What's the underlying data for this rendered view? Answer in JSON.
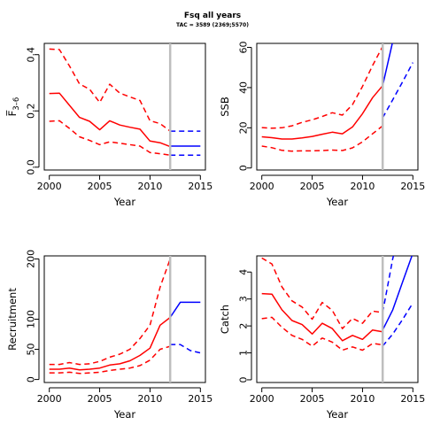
{
  "figure": {
    "title": "Fsq all years",
    "subtitle": "TAC = 3589 (2369;5570)"
  },
  "colors": {
    "historic": "#ff0000",
    "projection": "#0000ff",
    "divider": "#bebebe"
  },
  "chart_data": [
    {
      "type": "line",
      "id": "fbar",
      "ylabel": "F̅",
      "ylabel_subscript": "3–6",
      "xlabel": "Year",
      "xlim": [
        1999.5,
        2015.5
      ],
      "ylim": [
        -0.01,
        0.44
      ],
      "xticks": [
        2000,
        2005,
        2010,
        2015
      ],
      "yticks": [
        0.0,
        0.2,
        0.4
      ],
      "ytick_labels": [
        "0.0",
        "0.2",
        "0.4"
      ],
      "divider_x": 2012,
      "series": [
        {
          "role": "historic-median",
          "style": "solid",
          "x": [
            2000,
            2001,
            2002,
            2003,
            2004,
            2005,
            2006,
            2007,
            2008,
            2009,
            2010,
            2011,
            2012
          ],
          "y": [
            0.262,
            0.263,
            0.22,
            0.177,
            0.163,
            0.133,
            0.165,
            0.15,
            0.142,
            0.135,
            0.093,
            0.087,
            0.073
          ]
        },
        {
          "role": "historic-upper",
          "style": "dashed",
          "x": [
            2000,
            2001,
            2002,
            2003,
            2004,
            2005,
            2006,
            2007,
            2008,
            2009,
            2010,
            2011,
            2012
          ],
          "y": [
            0.42,
            0.418,
            0.36,
            0.296,
            0.277,
            0.23,
            0.295,
            0.263,
            0.25,
            0.237,
            0.165,
            0.155,
            0.128
          ]
        },
        {
          "role": "historic-lower",
          "style": "dashed",
          "x": [
            2000,
            2001,
            2002,
            2003,
            2004,
            2005,
            2006,
            2007,
            2008,
            2009,
            2010,
            2011,
            2012
          ],
          "y": [
            0.163,
            0.165,
            0.138,
            0.108,
            0.095,
            0.08,
            0.09,
            0.085,
            0.08,
            0.075,
            0.052,
            0.048,
            0.043
          ]
        },
        {
          "role": "projection-median",
          "style": "solid",
          "x": [
            2012,
            2013,
            2014,
            2015
          ],
          "y": [
            0.075,
            0.075,
            0.075,
            0.075
          ]
        },
        {
          "role": "projection-upper",
          "style": "dashed",
          "x": [
            2012,
            2013,
            2014,
            2015
          ],
          "y": [
            0.128,
            0.128,
            0.128,
            0.128
          ]
        },
        {
          "role": "projection-lower",
          "style": "dashed",
          "x": [
            2012,
            2013,
            2014,
            2015
          ],
          "y": [
            0.043,
            0.043,
            0.043,
            0.043
          ]
        }
      ]
    },
    {
      "type": "line",
      "id": "ssb",
      "ylabel": "SSB",
      "xlabel": "Year",
      "xlim": [
        1999.5,
        2015.5
      ],
      "ylim": [
        -1,
        62
      ],
      "xticks": [
        2000,
        2005,
        2010,
        2015
      ],
      "yticks": [
        0,
        20,
        40,
        60
      ],
      "ytick_labels": [
        "0",
        "20",
        "40",
        "60"
      ],
      "divider_x": 2012,
      "series": [
        {
          "role": "historic-median",
          "style": "solid",
          "x": [
            2000,
            2001,
            2002,
            2003,
            2004,
            2005,
            2006,
            2007,
            2008,
            2009,
            2010,
            2011,
            2012
          ],
          "y": [
            15.5,
            15.1,
            14.4,
            14.4,
            15.0,
            15.7,
            16.8,
            17.8,
            17.0,
            20.4,
            27.0,
            35.0,
            41.0
          ]
        },
        {
          "role": "historic-upper",
          "style": "dashed",
          "x": [
            2000,
            2001,
            2002,
            2003,
            2004,
            2005,
            2006,
            2007,
            2008,
            2009,
            2010,
            2011,
            2012
          ],
          "y": [
            20.1,
            19.8,
            20.0,
            21.0,
            22.7,
            24.0,
            25.6,
            27.5,
            26.3,
            31.5,
            40.6,
            51.0,
            60.5
          ]
        },
        {
          "role": "historic-lower",
          "style": "dashed",
          "x": [
            2000,
            2001,
            2002,
            2003,
            2004,
            2005,
            2006,
            2007,
            2008,
            2009,
            2010,
            2011,
            2012
          ],
          "y": [
            10.9,
            10.1,
            8.8,
            8.4,
            8.5,
            8.5,
            8.7,
            8.9,
            8.7,
            10.0,
            13.0,
            17.0,
            21.0
          ]
        },
        {
          "role": "projection-median",
          "style": "solid",
          "x": [
            2012,
            2012.5,
            2013,
            2013.5
          ],
          "y": [
            41.0,
            52.0,
            63.0,
            70.0
          ]
        },
        {
          "role": "projection-lower",
          "style": "dashed",
          "x": [
            2012,
            2013,
            2014,
            2015
          ],
          "y": [
            25.0,
            34.0,
            43.0,
            52.5
          ]
        }
      ]
    },
    {
      "type": "line",
      "id": "recruitment",
      "ylabel": "Recruitment",
      "xlabel": "Year",
      "xlim": [
        1999.5,
        2015.5
      ],
      "ylim": [
        -5,
        205
      ],
      "xticks": [
        2000,
        2005,
        2010,
        2015
      ],
      "yticks": [
        0,
        50,
        100,
        200
      ],
      "ytick_labels": [
        "0",
        "50",
        "100",
        "200"
      ],
      "divider_x": 2012,
      "series": [
        {
          "role": "historic-median",
          "style": "solid",
          "x": [
            2000,
            2001,
            2002,
            2003,
            2004,
            2005,
            2006,
            2007,
            2008,
            2009,
            2010,
            2011,
            2012
          ],
          "y": [
            17,
            17,
            19,
            16,
            17,
            19,
            24,
            26,
            31,
            40,
            52,
            90,
            103
          ]
        },
        {
          "role": "historic-upper",
          "style": "dashed",
          "x": [
            2000,
            2001,
            2002,
            2003,
            2004,
            2005,
            2006,
            2007,
            2008,
            2009,
            2010,
            2011,
            2012
          ],
          "y": [
            25,
            25,
            28,
            25,
            26,
            30,
            37,
            42,
            50,
            68,
            90,
            153,
            200
          ]
        },
        {
          "role": "historic-lower",
          "style": "dashed",
          "x": [
            2000,
            2001,
            2002,
            2003,
            2004,
            2005,
            2006,
            2007,
            2008,
            2009,
            2010,
            2011,
            2012
          ],
          "y": [
            11,
            11,
            12,
            10,
            11,
            12,
            15,
            17,
            19,
            23,
            32,
            50,
            55
          ]
        },
        {
          "role": "projection-median",
          "style": "solid",
          "x": [
            2012,
            2013,
            2014,
            2015
          ],
          "y": [
            103,
            128,
            128,
            128
          ]
        },
        {
          "role": "projection-lower",
          "style": "dashed",
          "x": [
            2012,
            2013,
            2014,
            2015
          ],
          "y": [
            58,
            58,
            48,
            44
          ]
        }
      ]
    },
    {
      "type": "line",
      "id": "catch",
      "ylabel": "Catch",
      "xlabel": "Year",
      "xlim": [
        1999.5,
        2015.5
      ],
      "ylim": [
        -0.1,
        4.6
      ],
      "xticks": [
        2000,
        2005,
        2010,
        2015
      ],
      "yticks": [
        0,
        1,
        2,
        3,
        4
      ],
      "ytick_labels": [
        "0",
        "1",
        "2",
        "3",
        "4"
      ],
      "divider_x": 2012,
      "series": [
        {
          "role": "historic-median",
          "style": "solid",
          "x": [
            2000,
            2001,
            2002,
            2003,
            2004,
            2005,
            2006,
            2007,
            2008,
            2009,
            2010,
            2011,
            2012
          ],
          "y": [
            3.2,
            3.18,
            2.6,
            2.2,
            2.05,
            1.7,
            2.1,
            1.9,
            1.45,
            1.65,
            1.5,
            1.85,
            1.78
          ]
        },
        {
          "role": "historic-upper",
          "style": "dashed",
          "x": [
            2000,
            2001,
            2002,
            2003,
            2004,
            2005,
            2006,
            2007,
            2008,
            2009,
            2010,
            2011,
            2012
          ],
          "y": [
            4.52,
            4.3,
            3.45,
            2.93,
            2.7,
            2.25,
            2.87,
            2.58,
            1.9,
            2.28,
            2.1,
            2.55,
            2.5
          ]
        },
        {
          "role": "historic-lower",
          "style": "dashed",
          "x": [
            2000,
            2001,
            2002,
            2003,
            2004,
            2005,
            2006,
            2007,
            2008,
            2009,
            2010,
            2011,
            2012
          ],
          "y": [
            2.27,
            2.32,
            1.95,
            1.65,
            1.5,
            1.25,
            1.55,
            1.4,
            1.1,
            1.22,
            1.1,
            1.35,
            1.3
          ]
        },
        {
          "role": "projection-median",
          "style": "solid",
          "x": [
            2012,
            2013,
            2014,
            2015
          ],
          "y": [
            1.85,
            2.6,
            3.65,
            4.7
          ]
        },
        {
          "role": "projection-upper",
          "style": "dashed",
          "x": [
            2012,
            2012.5,
            2013,
            2013.5
          ],
          "y": [
            2.5,
            3.5,
            4.5,
            5.2
          ]
        },
        {
          "role": "projection-lower",
          "style": "dashed",
          "x": [
            2012,
            2013,
            2014,
            2015
          ],
          "y": [
            1.25,
            1.7,
            2.25,
            2.85
          ]
        }
      ]
    }
  ]
}
